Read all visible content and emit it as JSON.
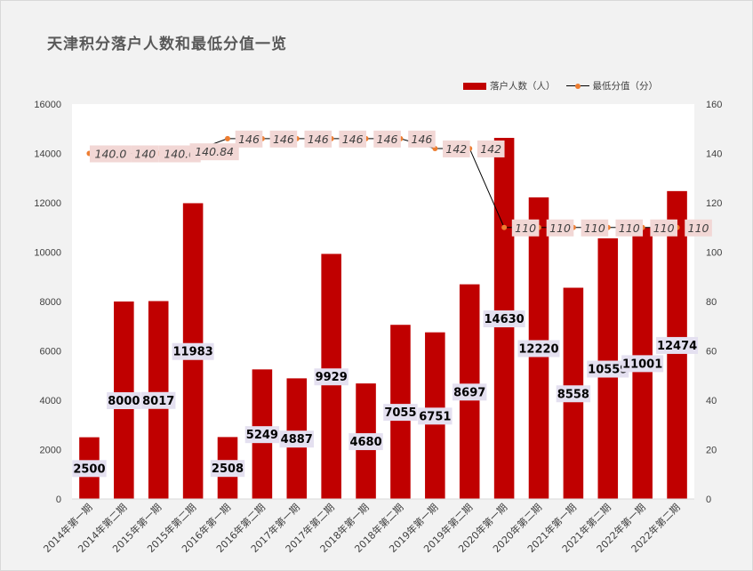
{
  "title": "天津积分落户人数和最低分值一览",
  "colors": {
    "bar": "#c00000",
    "line": "#000000",
    "marker": "#ed7d31",
    "label_bg": "#e4e0f0",
    "line_label_bg": "#f2d7d5",
    "plot_bg": "#ffffff"
  },
  "legend": {
    "bar_label": "落户人数（人）",
    "line_label": "最低分值（分）"
  },
  "chart_data": {
    "type": "bar",
    "categories": [
      "2014年第一期",
      "2014年第二期",
      "2015年第一期",
      "2015年第二期",
      "2016年第一期",
      "2016年第二期",
      "2017年第一期",
      "2017年第二期",
      "2018年第一期",
      "2018年第二期",
      "2019年第一期",
      "2019年第二期",
      "2020年第一期",
      "2020年第二期",
      "2021年第一期",
      "2021年第二期",
      "2022年第一期",
      "2022年第二期"
    ],
    "series": [
      {
        "name": "落户人数（人）",
        "type": "bar",
        "axis": "left",
        "values": [
          2500,
          8000,
          8017,
          11983,
          2508,
          5249,
          4887,
          9929,
          4680,
          7055,
          6751,
          8697,
          14630,
          12220,
          8558,
          10559,
          11001,
          12474
        ],
        "labels": [
          "2500",
          "8000",
          "8017",
          "11983",
          "2508",
          "5249",
          "4887",
          "9929",
          "4680",
          "7055",
          "6751",
          "8697",
          "14630",
          "12220",
          "8558",
          "10559",
          "11001",
          "12474"
        ]
      },
      {
        "name": "最低分值（分）",
        "type": "line",
        "axis": "right",
        "values": [
          140,
          140,
          140,
          140.84,
          146,
          146,
          146,
          146,
          146,
          146,
          142,
          142,
          110,
          110,
          110,
          110,
          110,
          110
        ],
        "labels": [
          "140.0",
          "140",
          "140.0",
          "140.84",
          "146",
          "146",
          "146",
          "146",
          "146",
          "146",
          "142",
          "142",
          "110",
          "110",
          "110",
          "110",
          "110",
          "110"
        ]
      }
    ],
    "left_axis": {
      "ylim": [
        0,
        16000
      ],
      "ticks": [
        "0",
        "2000",
        "4000",
        "6000",
        "8000",
        "10000",
        "12000",
        "14000",
        "16000"
      ]
    },
    "right_axis": {
      "ylim": [
        0,
        160
      ],
      "ticks": [
        "0",
        "20",
        "40",
        "60",
        "80",
        "100",
        "120",
        "140",
        "160"
      ]
    },
    "grid": false,
    "legend_position": "top-right"
  }
}
